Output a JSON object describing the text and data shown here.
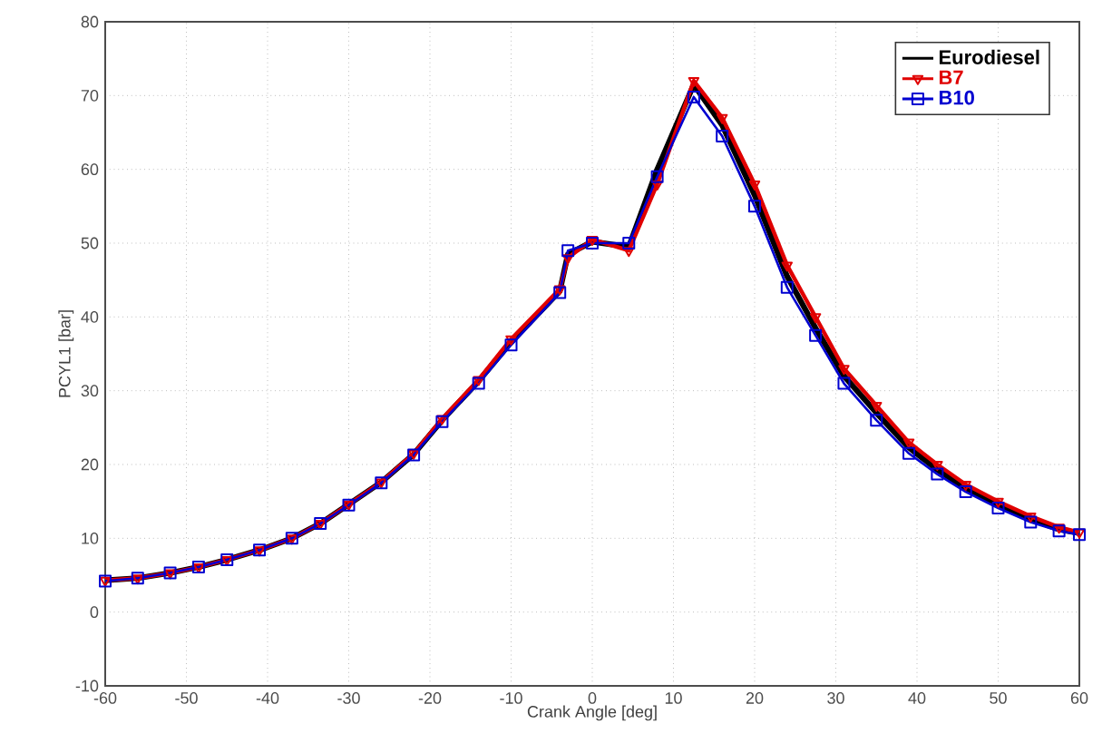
{
  "chart_data": {
    "type": "line",
    "xlabel": "Crank Angle [deg]",
    "ylabel": "PCYL1 [bar]",
    "x": [
      -60,
      -56,
      -52,
      -48.5,
      -45,
      -41,
      -37,
      -33.5,
      -30,
      -26,
      -22,
      -18.5,
      -14,
      -10,
      -4,
      -3,
      0,
      4.5,
      8,
      12.5,
      16,
      20,
      24,
      27.5,
      31,
      35,
      39,
      42.5,
      46,
      50,
      54,
      57.5,
      60
    ],
    "series": [
      {
        "name": "Eurodiesel",
        "color": "#000000",
        "marker": "none",
        "values": [
          4.3,
          4.6,
          5.3,
          6.1,
          7.1,
          8.4,
          10,
          12,
          14.6,
          17.6,
          21.4,
          26,
          31.3,
          36.6,
          43.5,
          48.5,
          50.2,
          49.5,
          60,
          71.5,
          66,
          56.5,
          45.5,
          38.5,
          32,
          27,
          22.3,
          19.3,
          16.8,
          14.6,
          12.6,
          11.2,
          10.7
        ]
      },
      {
        "name": "B7",
        "color": "#e00000",
        "marker": "triangle",
        "values": [
          4.3,
          4.6,
          5.3,
          6.1,
          7.1,
          8.4,
          10,
          12,
          14.6,
          17.6,
          21.5,
          26.2,
          31.5,
          37,
          43.8,
          48,
          50.5,
          49,
          58,
          72,
          67,
          58,
          47,
          40,
          33,
          28,
          23,
          20,
          17.3,
          15,
          13,
          11.5,
          10.8
        ]
      },
      {
        "name": "B10",
        "color": "#0000d0",
        "marker": "square",
        "values": [
          4.2,
          4.6,
          5.3,
          6.1,
          7.1,
          8.4,
          10,
          12,
          14.5,
          17.5,
          21.3,
          25.8,
          31,
          36.2,
          43.3,
          49,
          50,
          50,
          59,
          69.8,
          64.5,
          55,
          44,
          37.5,
          31,
          26,
          21.5,
          18.7,
          16.3,
          14.1,
          12.2,
          11,
          10.5
        ]
      }
    ],
    "xlim": [
      -60,
      60
    ],
    "ylim": [
      -10,
      80
    ],
    "xticks": [
      -60,
      -50,
      -40,
      -30,
      -20,
      -10,
      0,
      10,
      20,
      30,
      40,
      50,
      60
    ],
    "yticks": [
      -10,
      0,
      10,
      20,
      30,
      40,
      50,
      60,
      70,
      80
    ],
    "grid": true,
    "legend": "top right",
    "line_style": "solid"
  }
}
